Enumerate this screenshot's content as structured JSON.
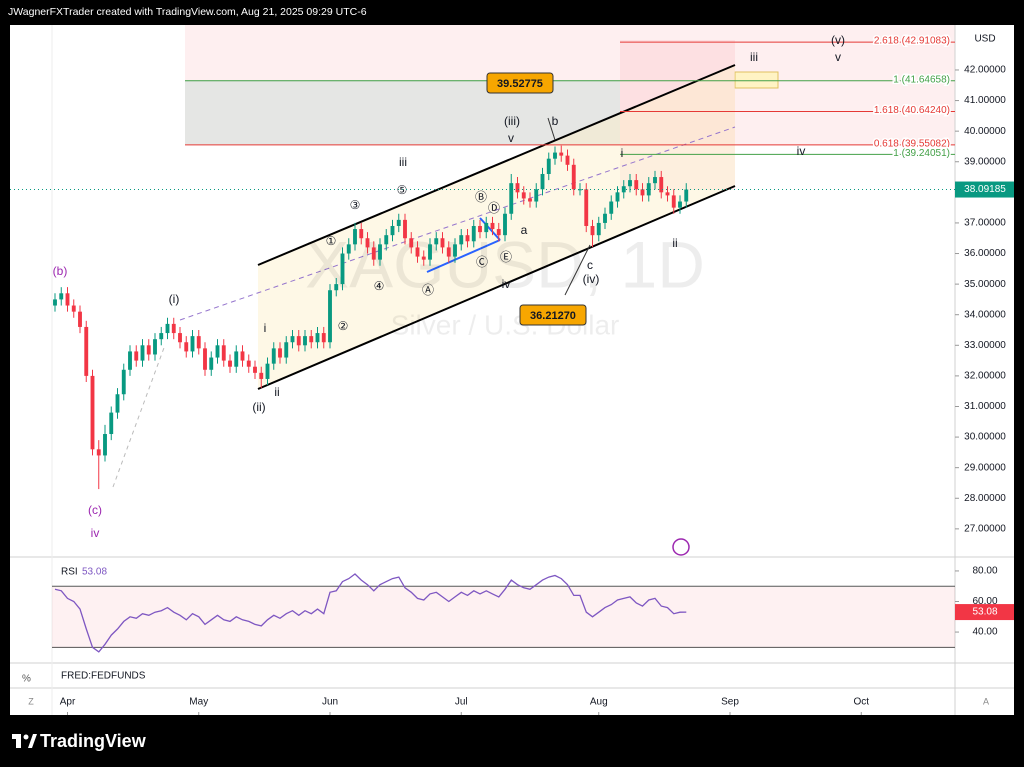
{
  "header": "JWagnerFXTrader created with TradingView.com, Aug 21, 2025 09:29 UTC-6",
  "footer": "TradingView",
  "corner_buttons": [
    "Z",
    "A"
  ],
  "fred_panel": {
    "title": "FRED:FEDFUNDS",
    "unit": "%"
  },
  "chart_data": [
    {
      "type": "candlestick",
      "title": "XAGUSD, 1D",
      "subtitle": "Silver / U.S. Dollar",
      "currency": "USD",
      "up_color": "#089981",
      "down_color": "#f23645",
      "x": [
        0,
        1,
        2,
        3,
        4,
        5,
        6,
        7,
        8,
        9,
        10,
        11,
        12,
        13,
        14,
        15,
        16,
        17,
        18,
        19,
        20,
        21,
        22,
        23,
        24,
        25,
        26,
        27,
        28,
        29,
        30,
        31,
        32,
        33,
        34,
        35,
        36,
        37,
        38,
        39,
        40,
        41,
        42,
        43,
        44,
        45,
        46,
        47,
        48,
        49,
        50,
        51,
        52,
        53,
        54,
        55,
        56,
        57,
        58,
        59,
        60,
        61,
        62,
        63,
        64,
        65,
        66,
        67,
        68,
        69,
        70,
        71,
        72,
        73,
        74,
        75,
        76,
        77,
        78,
        79,
        80,
        81,
        82,
        83,
        84,
        85,
        86,
        87,
        88,
        89,
        90,
        91,
        92,
        93,
        94,
        95,
        96,
        97,
        98,
        99,
        100,
        101
      ],
      "open": [
        34.3,
        34.5,
        34.7,
        34.3,
        34.1,
        33.6,
        32.0,
        29.6,
        29.4,
        30.1,
        30.8,
        31.4,
        32.2,
        32.8,
        32.5,
        33.0,
        32.7,
        33.2,
        33.4,
        33.7,
        33.4,
        33.1,
        32.8,
        33.3,
        32.9,
        32.2,
        32.6,
        33.0,
        32.5,
        32.3,
        32.8,
        32.5,
        32.3,
        32.1,
        31.9,
        32.4,
        32.9,
        32.6,
        33.1,
        33.3,
        33.0,
        33.3,
        33.1,
        33.4,
        33.1,
        34.8,
        35.0,
        36.0,
        36.3,
        36.8,
        36.5,
        36.2,
        35.8,
        36.3,
        36.6,
        36.9,
        37.1,
        36.5,
        36.2,
        35.9,
        35.8,
        36.3,
        36.5,
        36.2,
        35.9,
        36.3,
        36.6,
        36.4,
        36.9,
        36.7,
        37.0,
        36.8,
        36.6,
        37.3,
        38.3,
        38.0,
        37.8,
        37.7,
        38.1,
        38.6,
        39.1,
        39.3,
        39.2,
        38.9,
        38.1,
        38.1,
        36.9,
        36.6,
        37.0,
        37.3,
        37.7,
        38.0,
        38.2,
        38.4,
        38.1,
        37.9,
        38.3,
        38.5,
        38.0,
        37.9,
        37.5,
        37.7
      ],
      "high": [
        34.7,
        34.9,
        34.9,
        34.5,
        34.3,
        33.8,
        32.2,
        29.9,
        30.4,
        31.0,
        31.6,
        32.4,
        33.0,
        33.0,
        33.2,
        33.2,
        33.4,
        33.6,
        33.9,
        33.9,
        33.6,
        33.3,
        33.5,
        33.5,
        33.1,
        32.8,
        33.2,
        33.2,
        32.7,
        33.0,
        33.0,
        32.7,
        32.5,
        32.3,
        32.6,
        33.1,
        33.1,
        33.3,
        33.5,
        33.5,
        33.5,
        33.5,
        33.6,
        33.6,
        35.0,
        35.2,
        36.2,
        36.5,
        37.0,
        37.0,
        36.7,
        36.4,
        36.5,
        36.8,
        37.1,
        37.3,
        37.3,
        36.7,
        36.4,
        36.1,
        36.5,
        36.7,
        36.7,
        36.4,
        36.5,
        36.8,
        36.8,
        37.1,
        37.1,
        37.2,
        37.2,
        37.0,
        37.5,
        38.6,
        38.5,
        38.2,
        38.0,
        38.3,
        38.8,
        39.3,
        39.5,
        39.52775,
        39.4,
        39.1,
        38.3,
        38.3,
        37.1,
        37.2,
        37.5,
        37.9,
        38.2,
        38.4,
        38.6,
        38.6,
        38.3,
        38.5,
        38.7,
        38.7,
        38.2,
        38.1,
        37.9,
        38.3
      ],
      "low": [
        34.1,
        34.3,
        34.1,
        33.9,
        33.4,
        31.8,
        29.4,
        28.3,
        29.2,
        29.9,
        30.6,
        31.2,
        32.0,
        32.3,
        32.3,
        32.5,
        32.5,
        33.0,
        33.2,
        33.2,
        32.9,
        32.6,
        32.6,
        32.7,
        32.0,
        32.0,
        32.4,
        32.3,
        32.1,
        32.1,
        32.3,
        32.1,
        31.9,
        31.6,
        31.7,
        32.2,
        32.4,
        32.4,
        32.9,
        32.8,
        32.8,
        32.9,
        32.9,
        32.9,
        32.9,
        34.6,
        34.8,
        35.8,
        36.1,
        36.3,
        36.0,
        35.6,
        35.6,
        36.1,
        36.4,
        36.7,
        36.3,
        36.0,
        35.7,
        35.6,
        35.6,
        36.1,
        36.0,
        35.7,
        35.7,
        36.1,
        36.2,
        36.2,
        36.5,
        36.5,
        36.6,
        36.4,
        36.4,
        37.1,
        37.8,
        37.6,
        37.5,
        37.5,
        37.9,
        38.4,
        38.9,
        39.0,
        38.7,
        37.9,
        37.9,
        36.7,
        36.2127,
        36.4,
        36.8,
        37.1,
        37.5,
        37.8,
        38.0,
        37.9,
        37.7,
        37.7,
        38.1,
        37.8,
        37.7,
        37.3,
        37.3,
        37.5
      ],
      "close": [
        34.5,
        34.7,
        34.3,
        34.1,
        33.6,
        32.0,
        29.6,
        29.4,
        30.1,
        30.8,
        31.4,
        32.2,
        32.8,
        32.5,
        33.0,
        32.7,
        33.2,
        33.4,
        33.7,
        33.4,
        33.1,
        32.8,
        33.3,
        32.9,
        32.2,
        32.6,
        33.0,
        32.5,
        32.3,
        32.8,
        32.5,
        32.3,
        32.1,
        31.9,
        32.4,
        32.9,
        32.6,
        33.1,
        33.3,
        33.0,
        33.3,
        33.1,
        33.4,
        33.1,
        34.8,
        35.0,
        36.0,
        36.3,
        36.8,
        36.5,
        36.2,
        35.8,
        36.3,
        36.6,
        36.9,
        37.1,
        36.5,
        36.2,
        35.9,
        35.8,
        36.3,
        36.5,
        36.2,
        35.9,
        36.3,
        36.6,
        36.4,
        36.9,
        36.7,
        37.0,
        36.8,
        36.6,
        37.3,
        38.3,
        38.0,
        37.8,
        37.7,
        38.1,
        38.6,
        39.1,
        39.3,
        39.2,
        38.9,
        38.1,
        38.1,
        36.9,
        36.6,
        37.0,
        37.3,
        37.7,
        38.0,
        38.2,
        38.4,
        38.1,
        37.9,
        38.3,
        38.5,
        38.0,
        37.9,
        37.5,
        37.7,
        38.09185
      ],
      "xlim": [
        -7.2,
        144
      ],
      "xticks": [
        {
          "value": 2,
          "label": "Apr"
        },
        {
          "value": 23,
          "label": "May"
        },
        {
          "value": 44,
          "label": "Jun"
        },
        {
          "value": 65,
          "label": "Jul"
        },
        {
          "value": 87,
          "label": "Aug"
        },
        {
          "value": 108,
          "label": "Sep"
        },
        {
          "value": 129,
          "label": "Oct"
        }
      ],
      "ylim": [
        26.08,
        43.47
      ],
      "yticks": [
        {
          "value": 27,
          "label": "27.00000"
        },
        {
          "value": 28,
          "label": "28.00000"
        },
        {
          "value": 29,
          "label": "29.00000"
        },
        {
          "value": 30,
          "label": "30.00000"
        },
        {
          "value": 31,
          "label": "31.00000"
        },
        {
          "value": 32,
          "label": "32.00000"
        },
        {
          "value": 33,
          "label": "33.00000"
        },
        {
          "value": 34,
          "label": "34.00000"
        },
        {
          "value": 35,
          "label": "35.00000"
        },
        {
          "value": 36,
          "label": "36.00000"
        },
        {
          "value": 37,
          "label": "37.00000"
        },
        {
          "value": 38,
          "label": "38.00000"
        },
        {
          "value": 39,
          "label": "39.00000"
        },
        {
          "value": 40,
          "label": "40.00000"
        },
        {
          "value": 41,
          "label": "41.00000"
        },
        {
          "value": 42,
          "label": "42.00000"
        }
      ],
      "fib_levels": [
        {
          "value": 42.91083,
          "label": "2.618 (42.91083)",
          "color": "#e53935"
        },
        {
          "value": 41.64658,
          "label": "1 (41.64658)",
          "color": "#43a047"
        },
        {
          "value": 40.6424,
          "label": "1.618 (40.64240)",
          "color": "#e53935"
        },
        {
          "value": 39.55082,
          "label": "0.618 (39.55082)",
          "color": "#e53935"
        },
        {
          "value": 39.24051,
          "label": "1 (39.24051)",
          "color": "#43a047"
        }
      ],
      "price_labels": [
        {
          "value": 39.52775,
          "label": "39.52775"
        },
        {
          "value": 36.2127,
          "label": "36.21270"
        }
      ],
      "wave_labels": [
        "(b)",
        "(c)",
        "iv",
        "(i)",
        "(ii)",
        "ii",
        "i",
        "iii",
        "①",
        "②",
        "③",
        "④",
        "⑤",
        "Ⓐ",
        "Ⓑ",
        "Ⓒ",
        "Ⓓ",
        "Ⓔ",
        "iv",
        "(iii)",
        "v",
        "b",
        "a",
        "c",
        "(iv)",
        "i",
        "ii",
        "iv",
        "iii",
        "(v)",
        "v"
      ]
    },
    {
      "type": "line",
      "name": "RSI",
      "color": "#7e57c2",
      "x": [
        0,
        1,
        2,
        3,
        4,
        5,
        6,
        7,
        8,
        9,
        10,
        11,
        12,
        13,
        14,
        15,
        16,
        17,
        18,
        19,
        20,
        21,
        22,
        23,
        24,
        25,
        26,
        27,
        28,
        29,
        30,
        31,
        32,
        33,
        34,
        35,
        36,
        37,
        38,
        39,
        40,
        41,
        42,
        43,
        44,
        45,
        46,
        47,
        48,
        49,
        50,
        51,
        52,
        53,
        54,
        55,
        56,
        57,
        58,
        59,
        60,
        61,
        62,
        63,
        64,
        65,
        66,
        67,
        68,
        69,
        70,
        71,
        72,
        73,
        74,
        75,
        76,
        77,
        78,
        79,
        80,
        81,
        82,
        83,
        84,
        85,
        86,
        87,
        88,
        89,
        90,
        91,
        92,
        93,
        94,
        95,
        96,
        97,
        98,
        99,
        100,
        101
      ],
      "values": [
        68,
        67,
        62,
        60,
        55,
        42,
        30,
        27,
        32,
        38,
        42,
        47,
        50,
        49,
        52,
        51,
        53,
        54,
        56,
        53,
        51,
        48,
        52,
        50,
        45,
        48,
        51,
        48,
        47,
        50,
        48,
        47,
        45,
        44,
        48,
        51,
        49,
        52,
        54,
        51,
        54,
        52,
        55,
        52,
        66,
        67,
        73,
        75,
        78,
        74,
        71,
        67,
        71,
        73,
        75,
        76,
        69,
        66,
        62,
        61,
        65,
        66,
        63,
        60,
        63,
        66,
        64,
        67,
        65,
        67,
        65,
        63,
        68,
        74,
        71,
        69,
        68,
        71,
        74,
        76,
        77,
        75,
        71,
        64,
        64,
        53,
        50,
        53,
        56,
        58,
        61,
        62,
        63,
        59,
        57,
        61,
        62,
        57,
        56,
        52,
        53,
        53.08
      ],
      "xlim": [
        -7.2,
        144
      ],
      "ylim": [
        20.4,
        85.2
      ],
      "yticks": [
        {
          "value": 40,
          "label": "40.00"
        },
        {
          "value": 60,
          "label": "60.00"
        },
        {
          "value": 80,
          "label": "80.00"
        }
      ],
      "bands": [
        30,
        70
      ]
    }
  ]
}
